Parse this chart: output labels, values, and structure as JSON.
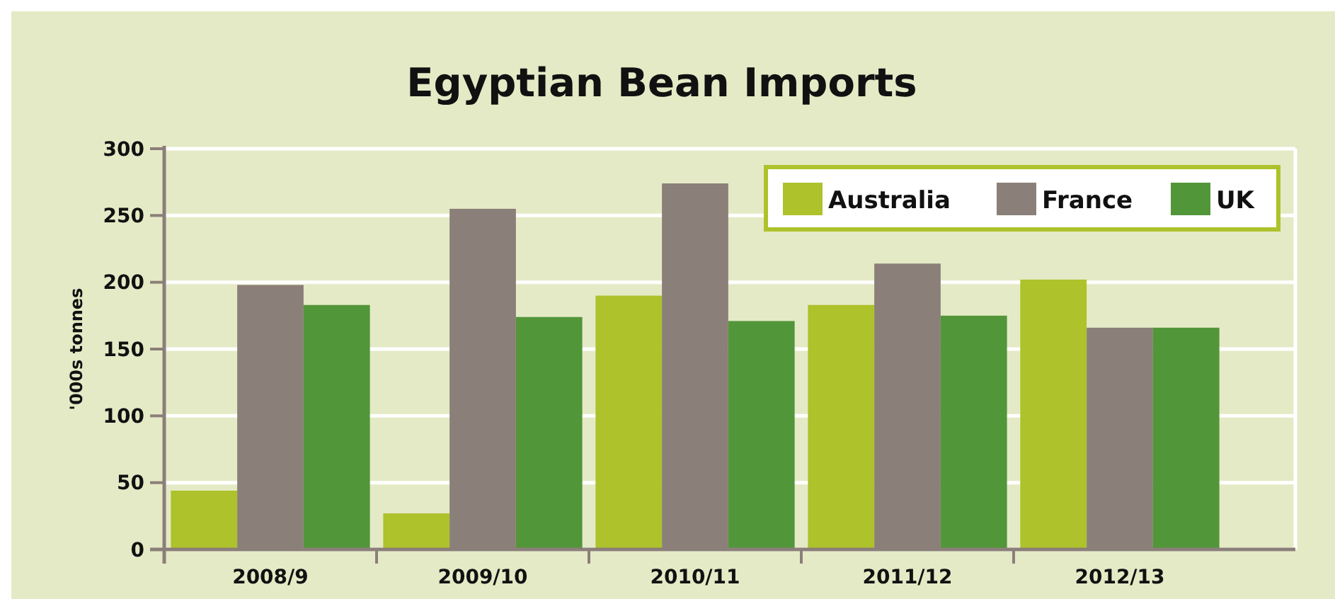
{
  "chart_data": {
    "type": "bar",
    "title": "Egyptian Bean Imports",
    "ylabel": "'000s tonnes",
    "categories": [
      "2008/9",
      "2009/10",
      "2010/11",
      "2011/12",
      "2012/13"
    ],
    "series": [
      {
        "name": "Australia",
        "color": "#adc22b",
        "values": [
          44,
          27,
          190,
          183,
          202
        ]
      },
      {
        "name": "France",
        "color": "#8b7f79",
        "values": [
          198,
          255,
          274,
          214,
          166
        ]
      },
      {
        "name": "UK",
        "color": "#52963a",
        "values": [
          183,
          174,
          171,
          175,
          166
        ]
      }
    ],
    "ylim": [
      0,
      300
    ],
    "yticks": [
      0,
      50,
      100,
      150,
      200,
      250,
      300
    ],
    "grid": "y",
    "legend": "top right"
  }
}
